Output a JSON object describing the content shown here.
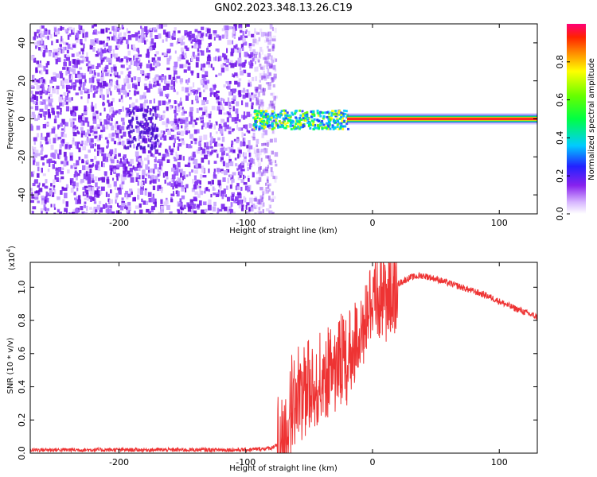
{
  "title": "GN02.2023.348.13.26.C19",
  "colors": {
    "snr_line": "#ee3333",
    "spectrogram_noise": "#7a22ee",
    "spectrogram_signal": "#ff2222"
  },
  "chart_data": [
    {
      "type": "heatmap",
      "xlabel": "Height of straight line (km)",
      "ylabel": "Frequency (Hz)",
      "xlim": [
        -270,
        130
      ],
      "ylim": [
        -50,
        50
      ],
      "x_ticks": [
        -200,
        -100,
        0,
        100
      ],
      "y_ticks": [
        -40,
        -20,
        0,
        20,
        40
      ],
      "description_regions": [
        {
          "x_range": [
            -270,
            -85
          ],
          "kind": "broadband noise",
          "amplitude": 0.15
        },
        {
          "x_range": [
            -95,
            -20
          ],
          "kind": "signal onset",
          "freq_center": 0,
          "freq_halfwidth": 5,
          "amplitude": 0.5
        },
        {
          "x_range": [
            -20,
            130
          ],
          "kind": "carrier tone",
          "freq_center": 0,
          "freq_halfwidth": 2,
          "amplitude": 0.95
        }
      ],
      "colorbar": {
        "label": "Normalized spectral amplitude",
        "range": [
          0.0,
          1.0
        ],
        "ticks": [
          0.0,
          0.2,
          0.4,
          0.6,
          0.8
        ]
      }
    },
    {
      "type": "line",
      "xlabel": "Height of straight line (km)",
      "ylabel": "SNR (10 * v/v)",
      "y_multiplier_label": "(x10",
      "y_multiplier_exp": "4",
      "y_multiplier_close": ")",
      "xlim": [
        -270,
        130
      ],
      "ylim": [
        0,
        1.15
      ],
      "x_ticks": [
        -200,
        -100,
        0,
        100
      ],
      "y_ticks": [
        0.0,
        0.2,
        0.4,
        0.6,
        0.8,
        1.0
      ],
      "y_tick_labels": [
        "0.0",
        "0.2",
        "0.4",
        "0.6",
        "0.8",
        "1.0"
      ],
      "series": [
        {
          "x": [
            -270,
            -200,
            -150,
            -100,
            -80,
            -70,
            -65,
            -60,
            -50,
            -40,
            -30,
            -20,
            -10,
            0,
            10,
            20,
            30,
            40,
            50,
            70,
            90,
            110,
            130
          ],
          "y": [
            0.02,
            0.02,
            0.02,
            0.02,
            0.03,
            0.08,
            0.25,
            0.35,
            0.4,
            0.45,
            0.55,
            0.6,
            0.75,
            0.9,
            0.95,
            1.02,
            1.06,
            1.07,
            1.05,
            1.0,
            0.95,
            0.88,
            0.82
          ]
        }
      ]
    }
  ]
}
